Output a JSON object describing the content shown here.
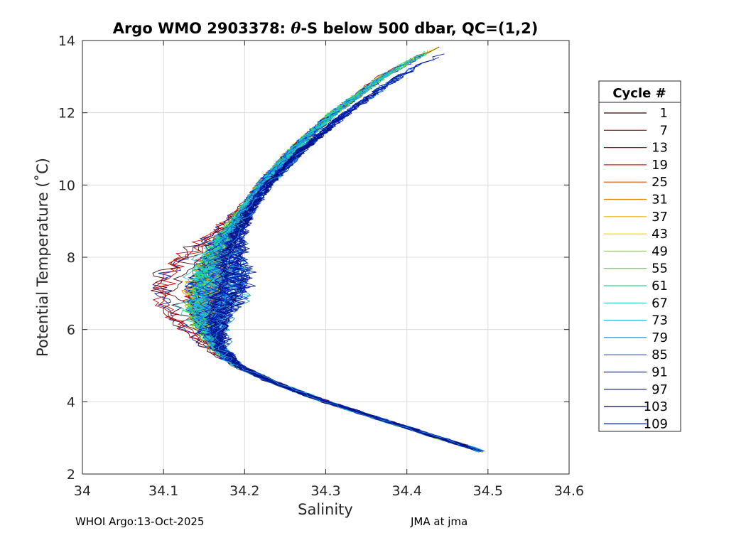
{
  "chart_data": {
    "type": "line",
    "title_prefix": "Argo WMO 2903378: ",
    "title_symbol": "θ",
    "title_suffix": "-S below 500 dbar,  QC=(1,2)",
    "xlabel": "Salinity",
    "ylabel": "Potential Temperature (˚C)",
    "xlim": [
      34.0,
      34.6
    ],
    "ylim": [
      2,
      14
    ],
    "x_ticks": [
      "34",
      "34.1",
      "34.2",
      "34.3",
      "34.4",
      "34.5",
      "34.6"
    ],
    "y_ticks": [
      "2",
      "4",
      "6",
      "8",
      "10",
      "12",
      "14"
    ],
    "grid": true,
    "legend_title": "Cycle #",
    "legend_position": "right-outside",
    "legend_entries": [
      {
        "label": "1",
        "color": "#3a0000"
      },
      {
        "label": "7",
        "color": "#8a0000"
      },
      {
        "label": "13",
        "color": "#c80000"
      },
      {
        "label": "19",
        "color": "#e02000"
      },
      {
        "label": "25",
        "color": "#e05000"
      },
      {
        "label": "31",
        "color": "#e88000"
      },
      {
        "label": "37",
        "color": "#f0b000"
      },
      {
        "label": "43",
        "color": "#f0e000"
      },
      {
        "label": "49",
        "color": "#a0e020"
      },
      {
        "label": "55",
        "color": "#40e040"
      },
      {
        "label": "61",
        "color": "#20d890"
      },
      {
        "label": "67",
        "color": "#20d8c8"
      },
      {
        "label": "73",
        "color": "#20b8e0"
      },
      {
        "label": "79",
        "color": "#1a90c8"
      },
      {
        "label": "85",
        "color": "#1060d0"
      },
      {
        "label": "91",
        "color": "#0030e0"
      },
      {
        "label": "97",
        "color": "#0010a0"
      },
      {
        "label": "103",
        "color": "#000060"
      },
      {
        "label": "109",
        "color": "#001890"
      }
    ],
    "profile_shape": {
      "temperature": [
        2.65,
        3.0,
        3.5,
        4.0,
        4.5,
        5.0,
        5.5,
        6.0,
        6.5,
        7.0,
        7.5,
        8.0,
        8.5,
        9.0,
        9.5,
        10.0,
        10.5,
        11.0,
        11.5,
        12.0,
        12.5,
        13.0,
        13.5,
        13.85
      ],
      "salinity_mean": [
        34.49,
        34.44,
        34.37,
        34.3,
        34.24,
        34.19,
        34.165,
        34.155,
        34.15,
        34.155,
        34.16,
        34.165,
        34.175,
        34.19,
        34.205,
        34.22,
        34.24,
        34.26,
        34.285,
        34.31,
        34.34,
        34.37,
        34.41,
        34.44
      ]
    }
  },
  "footer": {
    "left": "WHOI Argo:13-Oct-2025",
    "right": "JMA at jma"
  }
}
